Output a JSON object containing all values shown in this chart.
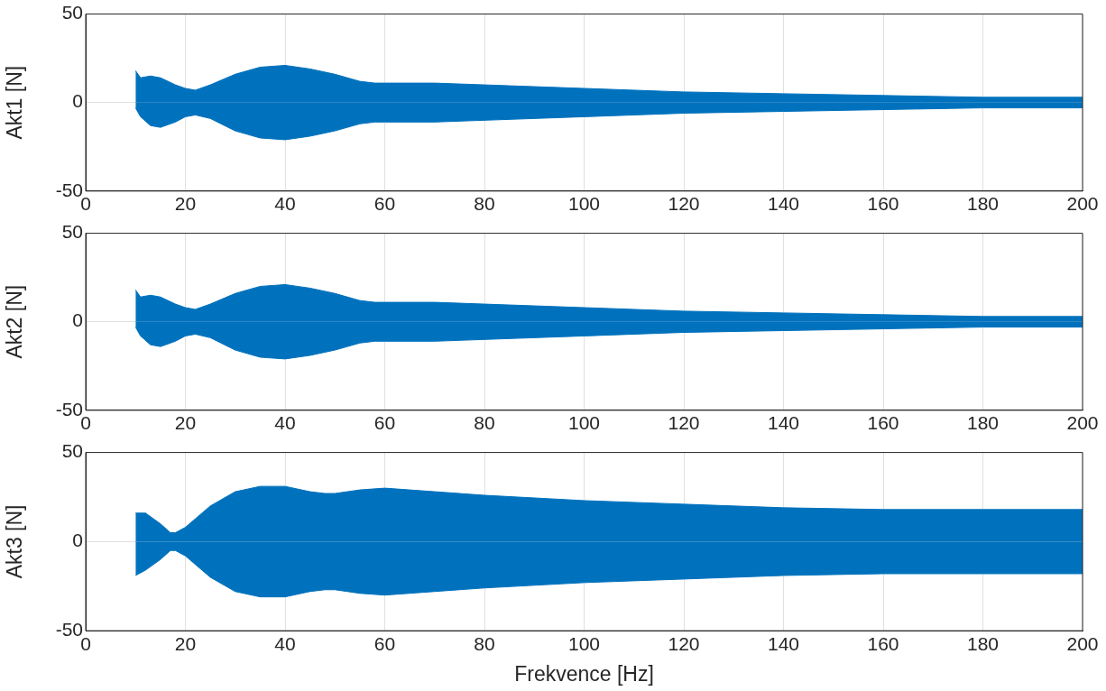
{
  "chart_data": [
    {
      "type": "area",
      "ylabel": "Akt1 [N]",
      "xlim": [
        0,
        200
      ],
      "xticks": [
        0,
        20,
        40,
        60,
        80,
        100,
        120,
        140,
        160,
        180,
        200
      ],
      "ylim": [
        -50,
        50
      ],
      "yticks": [
        -50,
        0,
        50
      ],
      "grid": true,
      "legend": false,
      "x": [
        10,
        11,
        13,
        15,
        18,
        20,
        22,
        25,
        30,
        35,
        40,
        45,
        50,
        55,
        58,
        60,
        70,
        80,
        100,
        120,
        140,
        160,
        180,
        200
      ],
      "series": [
        {
          "color": "#0072bd",
          "values": [
            18,
            14,
            15,
            14,
            10,
            8,
            7,
            10,
            16,
            20,
            21,
            19,
            16,
            12,
            11,
            11,
            11,
            10,
            8,
            6,
            5,
            4,
            3,
            3
          ]
        },
        {
          "color": "#0072bd",
          "values": [
            -3,
            -8,
            -13,
            -14,
            -11,
            -8,
            -7,
            -9,
            -16,
            -20,
            -21,
            -19,
            -16,
            -12,
            -11,
            -11,
            -11,
            -10,
            -8,
            -6,
            -5,
            -4,
            -3,
            -3
          ]
        }
      ]
    },
    {
      "type": "area",
      "ylabel": "Akt2 [N]",
      "xlim": [
        0,
        200
      ],
      "xticks": [
        0,
        20,
        40,
        60,
        80,
        100,
        120,
        140,
        160,
        180,
        200
      ],
      "ylim": [
        -50,
        50
      ],
      "yticks": [
        -50,
        0,
        50
      ],
      "grid": true,
      "legend": false,
      "x": [
        10,
        11,
        13,
        15,
        18,
        20,
        22,
        25,
        30,
        35,
        40,
        45,
        50,
        55,
        58,
        60,
        70,
        80,
        100,
        120,
        140,
        160,
        180,
        200
      ],
      "series": [
        {
          "color": "#0072bd",
          "values": [
            18,
            14,
            15,
            14,
            10,
            8,
            7,
            10,
            16,
            20,
            21,
            19,
            16,
            12,
            11,
            11,
            11,
            10,
            8,
            6,
            5,
            4,
            3,
            3
          ]
        },
        {
          "color": "#0072bd",
          "values": [
            -3,
            -8,
            -13,
            -14,
            -11,
            -8,
            -7,
            -9,
            -16,
            -20,
            -21,
            -19,
            -16,
            -12,
            -11,
            -11,
            -11,
            -10,
            -8,
            -6,
            -5,
            -4,
            -3,
            -3
          ]
        }
      ]
    },
    {
      "type": "area",
      "ylabel": "Akt3 [N]",
      "xlabel": "Frekvence [Hz]",
      "xlim": [
        0,
        200
      ],
      "xticks": [
        0,
        20,
        40,
        60,
        80,
        100,
        120,
        140,
        160,
        180,
        200
      ],
      "ylim": [
        -50,
        50
      ],
      "yticks": [
        -50,
        0,
        50
      ],
      "grid": true,
      "legend": false,
      "x": [
        10,
        12,
        15,
        17,
        18,
        20,
        25,
        30,
        35,
        40,
        45,
        48,
        50,
        55,
        60,
        70,
        80,
        100,
        120,
        140,
        160,
        180,
        200
      ],
      "series": [
        {
          "color": "#0072bd",
          "values": [
            16,
            16,
            10,
            5,
            5,
            8,
            20,
            28,
            31,
            31,
            28,
            27,
            27,
            29,
            30,
            28,
            26,
            23,
            21,
            19,
            18,
            18,
            18
          ]
        },
        {
          "color": "#0072bd",
          "values": [
            -19,
            -16,
            -10,
            -5,
            -5,
            -8,
            -20,
            -28,
            -31,
            -31,
            -28,
            -27,
            -27,
            -29,
            -30,
            -28,
            -26,
            -23,
            -21,
            -19,
            -18,
            -18,
            -18
          ]
        }
      ]
    }
  ]
}
